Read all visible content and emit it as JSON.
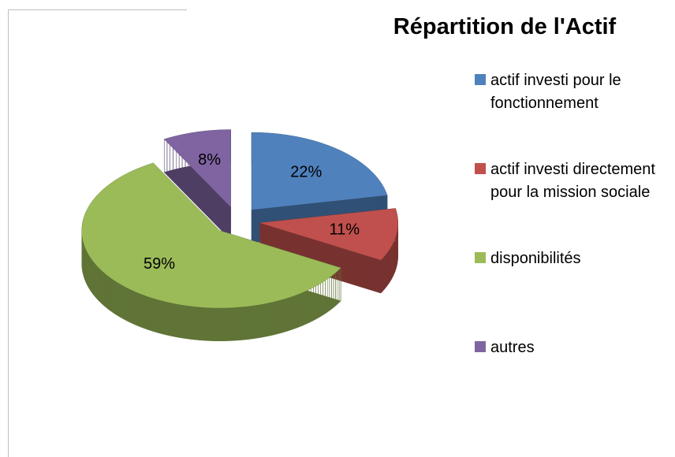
{
  "chart_data": {
    "type": "pie3d",
    "title": "Répartition de l'Actif",
    "categories": [
      "actif investi pour le fonctionnement",
      "actif investi directement pour la mission sociale",
      "disponibilités",
      "autres"
    ],
    "values": [
      22,
      11,
      59,
      8
    ],
    "value_labels": [
      "22%",
      "11%",
      "59%",
      "8%"
    ],
    "colors": [
      "#4f81bd",
      "#c0504d",
      "#9bbb59",
      "#8064a2"
    ],
    "legend": "right"
  }
}
